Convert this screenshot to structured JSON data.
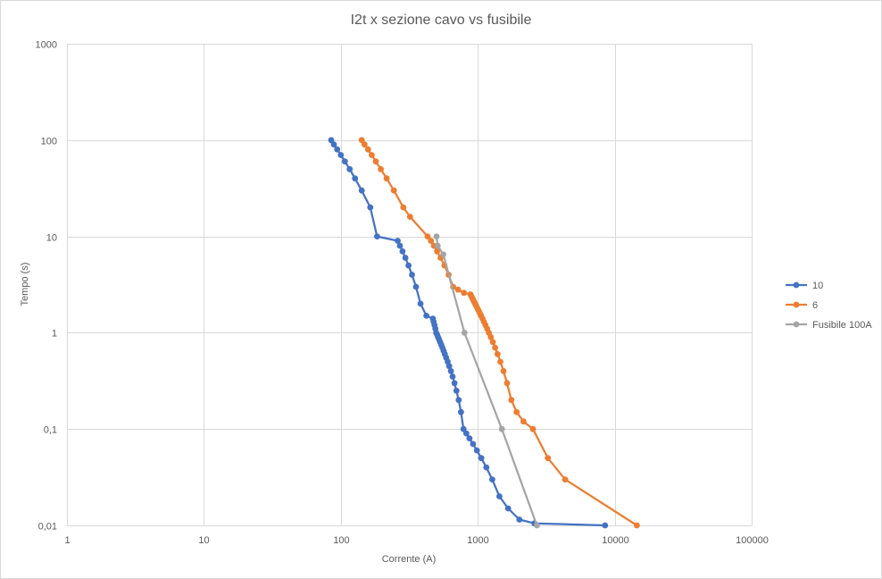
{
  "chart_data": {
    "type": "scatter",
    "title": "I2t x sezione cavo vs fusibile",
    "xlabel": "Corrente (A)",
    "ylabel": "Tempo (s)",
    "x_scale": "log",
    "y_scale": "log",
    "xlim": [
      1,
      100000
    ],
    "ylim": [
      0.01,
      1000
    ],
    "x_ticks": [
      "1",
      "10",
      "100",
      "1000",
      "10000",
      "100000"
    ],
    "y_ticks": [
      "0,01",
      "0,1",
      "1",
      "10",
      "100",
      "1000"
    ],
    "grid": true,
    "legend_position": "right",
    "series": [
      {
        "name": "10",
        "color": "#4472c4",
        "x": [
          85,
          89,
          94,
          100,
          107,
          116,
          127,
          142,
          164,
          184,
          260,
          270,
          282,
          296,
          312,
          331,
          354,
          382,
          421,
          470,
          476,
          483,
          490,
          497,
          505,
          513,
          522,
          531,
          541,
          552,
          563,
          575,
          588,
          603,
          619,
          636,
          655,
          676,
          699,
          725,
          754,
          787,
          825,
          870,
          923,
          985,
          1061,
          1155,
          1275,
          1437,
          1666,
          2014,
          2590,
          8500
        ],
        "y": [
          100,
          90,
          80,
          70,
          60,
          50,
          40,
          30,
          20,
          10,
          9,
          8,
          7,
          6,
          5,
          4,
          3,
          2,
          1.5,
          1.4,
          1.3,
          1.2,
          1.1,
          1,
          0.95,
          0.9,
          0.85,
          0.8,
          0.75,
          0.7,
          0.65,
          0.6,
          0.55,
          0.5,
          0.45,
          0.4,
          0.35,
          0.3,
          0.25,
          0.2,
          0.15,
          0.1,
          0.09,
          0.08,
          0.07,
          0.06,
          0.05,
          0.04,
          0.03,
          0.02,
          0.015,
          0.0115,
          0.0105,
          0.01
        ]
      },
      {
        "name": "6",
        "color": "#ed7d31",
        "x": [
          142,
          149,
          158,
          168,
          180,
          196,
          216,
          244,
          286,
          320,
          430,
          455,
          478,
          504,
          535,
          571,
          612,
          661,
          718,
          792,
          884,
          897,
          910,
          925,
          940,
          956,
          974,
          993,
          1013,
          1034,
          1057,
          1082,
          1109,
          1138,
          1170,
          1205,
          1245,
          1289,
          1338,
          1396,
          1462,
          1540,
          1636,
          1758,
          1922,
          2155,
          2530,
          3250,
          4350,
          14500
        ],
        "y": [
          100,
          90,
          80,
          70,
          60,
          50,
          40,
          30,
          20,
          16,
          10,
          9,
          8,
          7,
          6,
          5,
          4,
          3,
          2.8,
          2.6,
          2.5,
          2.4,
          2.3,
          2.2,
          2.1,
          2,
          1.9,
          1.8,
          1.7,
          1.6,
          1.5,
          1.4,
          1.3,
          1.2,
          1.1,
          1,
          0.9,
          0.8,
          0.7,
          0.6,
          0.5,
          0.4,
          0.3,
          0.2,
          0.15,
          0.12,
          0.1,
          0.05,
          0.03,
          0.01
        ]
      },
      {
        "name": "Fusibile 100A",
        "color": "#a5a5a5",
        "x": [
          500,
          510,
          560,
          800,
          1500,
          2700
        ],
        "y": [
          10,
          8,
          6.5,
          1,
          0.1,
          0.01
        ]
      }
    ]
  }
}
